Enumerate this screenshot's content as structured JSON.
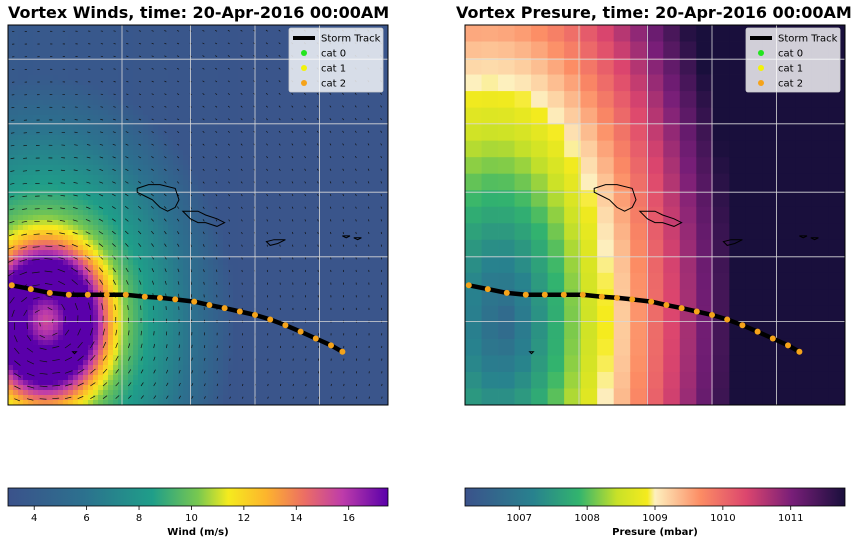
{
  "chart_data": [
    {
      "type": "heatmap",
      "title": "Vortex Winds, time: 20-Apr-2016 00:00AM",
      "colorbar": {
        "label": "Wind (m/s)",
        "range": [
          3,
          17.5
        ],
        "ticks": [
          4,
          6,
          8,
          10,
          12,
          14,
          16
        ],
        "colormap": "plasma_r-like (blue-teal-green-yellow-orange-pink-purple)"
      },
      "wind_vectors": true,
      "grid": true,
      "legend": {
        "placement": "top-right",
        "entries": [
          {
            "label": "Storm Track",
            "color": "#000000",
            "kind": "line"
          },
          {
            "label": "cat 0",
            "color": "#22e51e",
            "kind": "marker"
          },
          {
            "label": "cat 1",
            "color": "#f2f20a",
            "kind": "marker"
          },
          {
            "label": "cat 2",
            "color": "#f5a31a",
            "kind": "marker"
          }
        ]
      },
      "storm_track": {
        "category": "cat 2",
        "points": 21
      }
    },
    {
      "type": "heatmap",
      "title": "Vortex Presure, time: 20-Apr-2016 00:00AM",
      "colorbar": {
        "label": "Presure (mbar)",
        "range": [
          1006.2,
          1011.8
        ],
        "ticks": [
          1007,
          1008,
          1009,
          1010,
          1011
        ],
        "colormap": "blue-teal-green-yellow-cream-pink-purple-dark"
      },
      "grid": true,
      "legend": {
        "placement": "top-right",
        "entries": [
          {
            "label": "Storm Track",
            "color": "#000000",
            "kind": "line"
          },
          {
            "label": "cat 0",
            "color": "#22e51e",
            "kind": "marker"
          },
          {
            "label": "cat 1",
            "color": "#f2f20a",
            "kind": "marker"
          },
          {
            "label": "cat 2",
            "color": "#f5a31a",
            "kind": "marker"
          }
        ]
      },
      "storm_track": {
        "category": "cat 2",
        "points": 21
      }
    }
  ]
}
